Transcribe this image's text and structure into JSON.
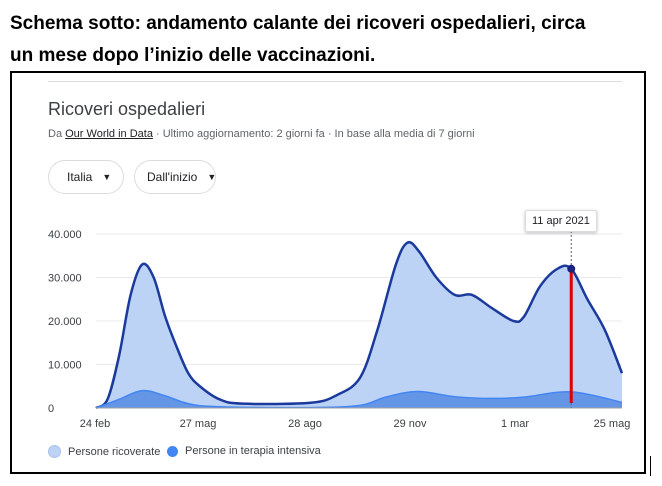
{
  "caption": {
    "line1": "Schema sotto: andamento calante dei ricoveri ospedalieri, circa",
    "line2": "un mese dopo l’inizio delle vaccinazioni."
  },
  "card": {
    "title": "Ricoveri ospedalieri",
    "subtitle_prefix": "Da ",
    "source_link": "Our World in Data",
    "subtitle_suffix": " · Ultimo aggiornamento: 2 giorni fa · In base alla media di 7 giorni",
    "country_chip": {
      "label": "Italia",
      "flag_colors": [
        "#009246",
        "#ffffff",
        "#ce2b37"
      ]
    },
    "range_chip": {
      "label": "Dall'inizio"
    },
    "tooltip": "11 apr 2021"
  },
  "chart_data": {
    "type": "area",
    "x_ticks": [
      "24 feb",
      "27 mag",
      "28 ago",
      "29 nov",
      "1 mar",
      "25 mag"
    ],
    "y_ticks": [
      "0",
      "10.000",
      "20.000",
      "30.000",
      "40.000"
    ],
    "ylim": [
      0,
      40000
    ],
    "grid": true,
    "legend_position": "bottom-left",
    "highlight_date": "11 apr 2021",
    "series": [
      {
        "name": "Persone ricoverate",
        "color": "#1a3a9c",
        "fill": "#bcd3f5",
        "points": [
          [
            "24 feb 2020",
            0
          ],
          [
            "5 mar 2020",
            2000
          ],
          [
            "15 mar 2020",
            12000
          ],
          [
            "25 mar 2020",
            26000
          ],
          [
            "4 apr 2020",
            33000
          ],
          [
            "14 apr 2020",
            30000
          ],
          [
            "24 apr 2020",
            21000
          ],
          [
            "4 mag 2020",
            14000
          ],
          [
            "14 mag 2020",
            8000
          ],
          [
            "24 mag 2020",
            5000
          ],
          [
            "10 giu 2020",
            2000
          ],
          [
            "30 giu 2020",
            1000
          ],
          [
            "28 ago 2020",
            1200
          ],
          [
            "20 set 2020",
            3000
          ],
          [
            "10 ott 2020",
            7000
          ],
          [
            "25 ott 2020",
            18000
          ],
          [
            "10 nov 2020",
            33000
          ],
          [
            "20 nov 2020",
            38000
          ],
          [
            "30 nov 2020",
            36000
          ],
          [
            "15 dic 2020",
            30000
          ],
          [
            "31 dic 2020",
            26000
          ],
          [
            "15 gen 2021",
            26000
          ],
          [
            "1 feb 2021",
            23000
          ],
          [
            "20 feb 2021",
            20000
          ],
          [
            "1 mar 2021",
            21000
          ],
          [
            "15 mar 2021",
            28000
          ],
          [
            "30 mar 2021",
            32000
          ],
          [
            "11 apr 2021",
            32000
          ],
          [
            "25 apr 2021",
            25000
          ],
          [
            "10 mag 2021",
            18000
          ],
          [
            "25 mag 2021",
            8000
          ]
        ]
      },
      {
        "name": "Persone in terapia intensiva",
        "color": "#4285f4",
        "fill": "#5b8fe3",
        "points": [
          [
            "24 feb 2020",
            0
          ],
          [
            "15 mar 2020",
            2000
          ],
          [
            "4 apr 2020",
            4000
          ],
          [
            "24 apr 2020",
            2800
          ],
          [
            "14 mag 2020",
            1000
          ],
          [
            "10 giu 2020",
            300
          ],
          [
            "28 ago 2020",
            100
          ],
          [
            "10 ott 2020",
            600
          ],
          [
            "1 nov 2020",
            2500
          ],
          [
            "29 nov 2020",
            3800
          ],
          [
            "31 dic 2020",
            2600
          ],
          [
            "1 feb 2021",
            2200
          ],
          [
            "1 mar 2021",
            2500
          ],
          [
            "11 apr 2021",
            3700
          ],
          [
            "25 mag 2021",
            1300
          ]
        ]
      }
    ]
  }
}
